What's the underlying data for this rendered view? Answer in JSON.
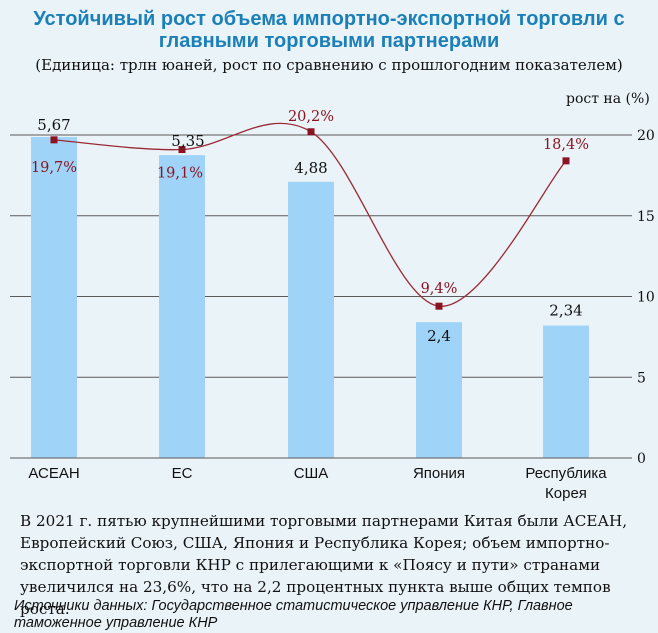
{
  "title_line1": "Устойчивый рост объема импортно-экспортной торговли с",
  "title_line2": "главными торговыми партнерами",
  "subtitle": "(Единица: трлн юаней, рост по сравнению с прошлогодним показателем)",
  "chart_data": {
    "type": "bar",
    "categories": [
      "АСЕАН",
      "ЕС",
      "США",
      "Япония",
      "Республика Корея"
    ],
    "category_lines": [
      [
        "АСЕАН"
      ],
      [
        "ЕС"
      ],
      [
        "США"
      ],
      [
        "Япония"
      ],
      [
        "Республика",
        "Корея"
      ]
    ],
    "values": [
      5.67,
      5.35,
      4.88,
      2.4,
      2.34
    ],
    "value_labels": [
      "5,67",
      "5,35",
      "4,88",
      "2,4",
      "2,34"
    ],
    "growth": [
      19.7,
      19.1,
      20.2,
      9.4,
      18.4
    ],
    "growth_labels": [
      "19,7%",
      "19,1%",
      "20,2%",
      "9,4%",
      "18,4%"
    ],
    "y2label": "рост на (%)",
    "y2ticks": [
      "20",
      "15",
      "10",
      "5",
      "0"
    ],
    "y2lim": [
      0,
      20
    ],
    "colors": {
      "bar": "#9fd3f8",
      "line": "#9b2a35",
      "marker": "#8a1421",
      "label": "#8a1421",
      "title": "#1b7fb8"
    }
  },
  "footnote": "В 2021 г. пятью крупнейшими торговыми партнерами Китая были АСЕАН, Европейский Союз, США, Япония и Республика Корея; объем импортно-экспортной торговли КНР с прилегающими к «Поясу и пути» странами увеличился на 23,6%, что на 2,2 процентных пункта выше общих темпов роста.",
  "source": "Источники данных: Государственное статистическое управление КНР, Главное таможенное управление КНР"
}
